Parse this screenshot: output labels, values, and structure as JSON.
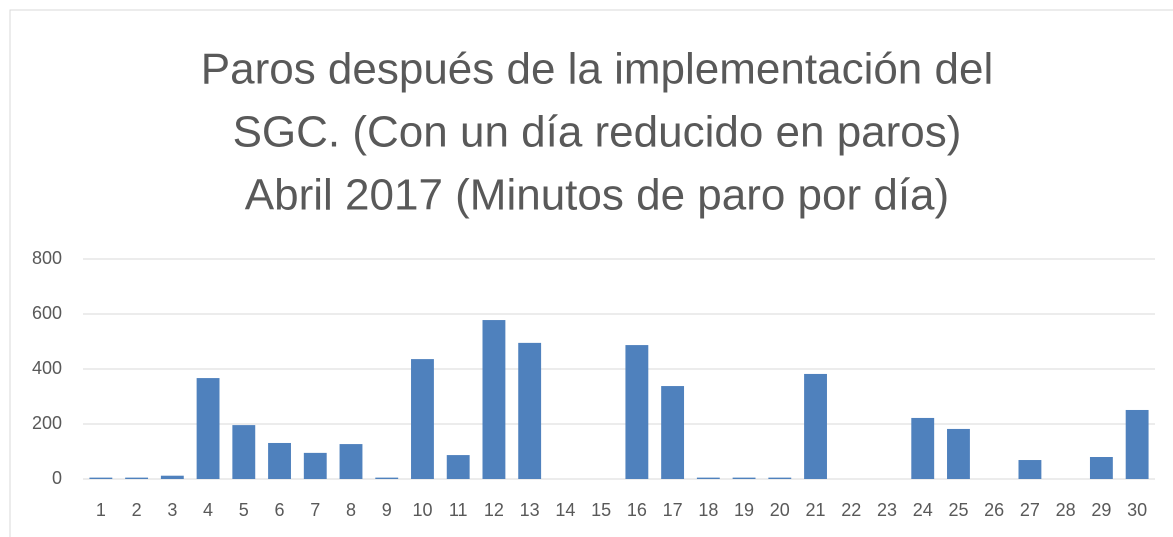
{
  "chart_data": {
    "type": "bar",
    "title": [
      "Paros después de la implementación del",
      "SGC. (Con un día reducido en paros)",
      "Abril 2017 (Minutos de paro por día)"
    ],
    "categories": [
      "1",
      "2",
      "3",
      "4",
      "5",
      "6",
      "7",
      "8",
      "9",
      "10",
      "11",
      "12",
      "13",
      "14",
      "15",
      "16",
      "17",
      "18",
      "19",
      "20",
      "21",
      "22",
      "23",
      "24",
      "25",
      "26",
      "27",
      "28",
      "29",
      "30"
    ],
    "values": [
      5,
      5,
      12,
      367,
      196,
      131,
      95,
      127,
      5,
      436,
      87,
      578,
      495,
      0,
      0,
      487,
      338,
      5,
      5,
      5,
      382,
      0,
      0,
      222,
      182,
      0,
      69,
      0,
      80,
      251
    ],
    "color": "#4f81bd",
    "ylim": [
      0,
      800
    ],
    "yticks": [
      0,
      200,
      400,
      600,
      800
    ],
    "grid": true
  }
}
